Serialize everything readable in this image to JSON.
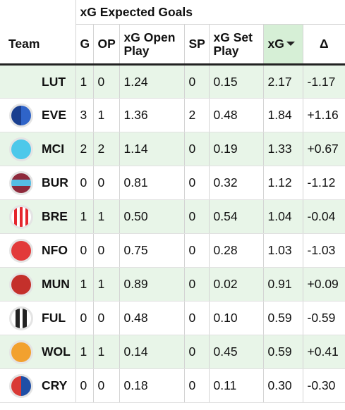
{
  "table": {
    "group_header": "xG Expected Goals",
    "columns": {
      "team": "Team",
      "g": "G",
      "op": "OP",
      "xg_open_play_line1": "xG Open",
      "xg_open_play_line2": "Play",
      "sp": "SP",
      "xg_set_play_line1": "xG Set",
      "xg_set_play_line2": "Play",
      "xg": "xG",
      "delta": "Δ"
    },
    "sort": {
      "column": "xG",
      "direction": "descending",
      "header_highlight": "#d6efd6"
    },
    "row_highlight": "#e8f5e8",
    "rows": [
      {
        "team": "LUT",
        "badge": "none",
        "g": "1",
        "op": "0",
        "xg_open": "1.24",
        "sp": "0",
        "xg_set": "0.15",
        "xg": "2.17",
        "delta": "-1.17",
        "color1": "",
        "color2": ""
      },
      {
        "team": "EVE",
        "badge": "half-split",
        "g": "3",
        "op": "1",
        "xg_open": "1.36",
        "sp": "2",
        "xg_set": "0.48",
        "xg": "1.84",
        "delta": "+1.16",
        "color1": "#1a3f8f",
        "color2": "#2f64c8"
      },
      {
        "team": "MCI",
        "badge": "solid",
        "g": "2",
        "op": "2",
        "xg_open": "1.14",
        "sp": "0",
        "xg_set": "0.19",
        "xg": "1.33",
        "delta": "+0.67",
        "color1": "#4dc8ea",
        "color2": ""
      },
      {
        "team": "BUR",
        "badge": "horizontal-band",
        "g": "0",
        "op": "0",
        "xg_open": "0.81",
        "sp": "0",
        "xg_set": "0.32",
        "xg": "1.12",
        "delta": "-1.12",
        "color1": "#8e2a3c",
        "color2": "#56bde3"
      },
      {
        "team": "BRE",
        "badge": "vertical-stripes",
        "g": "1",
        "op": "1",
        "xg_open": "0.50",
        "sp": "0",
        "xg_set": "0.54",
        "xg": "1.04",
        "delta": "-0.04",
        "color1": "#e5262e",
        "color2": "#ffffff"
      },
      {
        "team": "NFO",
        "badge": "solid",
        "g": "0",
        "op": "0",
        "xg_open": "0.75",
        "sp": "0",
        "xg_set": "0.28",
        "xg": "1.03",
        "delta": "-1.03",
        "color1": "#e23a3a",
        "color2": ""
      },
      {
        "team": "MUN",
        "badge": "solid",
        "g": "1",
        "op": "1",
        "xg_open": "0.89",
        "sp": "0",
        "xg_set": "0.02",
        "xg": "0.91",
        "delta": "+0.09",
        "color1": "#c4302b",
        "color2": ""
      },
      {
        "team": "FUL",
        "badge": "vertical-bars",
        "g": "0",
        "op": "0",
        "xg_open": "0.48",
        "sp": "0",
        "xg_set": "0.10",
        "xg": "0.59",
        "delta": "-0.59",
        "color1": "#222222",
        "color2": "#ffffff"
      },
      {
        "team": "WOL",
        "badge": "solid",
        "g": "1",
        "op": "1",
        "xg_open": "0.14",
        "sp": "0",
        "xg_set": "0.45",
        "xg": "0.59",
        "delta": "+0.41",
        "color1": "#f2a12f",
        "color2": ""
      },
      {
        "team": "CRY",
        "badge": "half-split",
        "g": "0",
        "op": "0",
        "xg_open": "0.18",
        "sp": "0",
        "xg_set": "0.11",
        "xg": "0.30",
        "delta": "-0.30",
        "color1": "#d93a36",
        "color2": "#1f4fa6"
      }
    ]
  }
}
